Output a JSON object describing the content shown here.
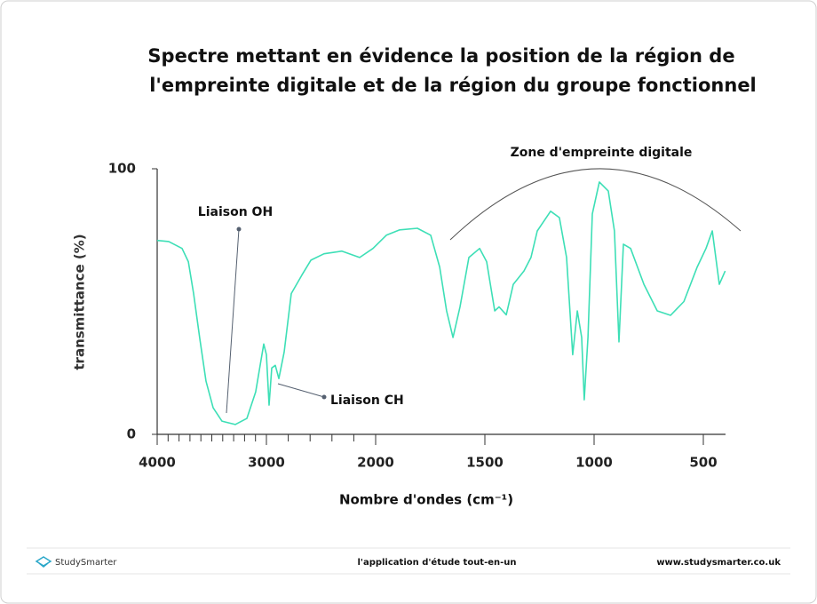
{
  "chart_data": {
    "type": "line",
    "title": [
      "Spectre mettant en évidence la position de la région de",
      "l'empreinte digitale et de la région du groupe fonctionnel"
    ],
    "x_label": "Nombre d'ondes (cm⁻¹)",
    "y_label": "transmittance (%)",
    "annotations": [
      "Liaison OH",
      "Liaison CH",
      "Zone d'empreinte digitale"
    ],
    "x": [
      4000,
      3894,
      3772,
      3715,
      3667,
      3610,
      3553,
      3488,
      3407,
      3285,
      3179,
      3098,
      3024,
      3000,
      2976,
      2951,
      2919,
      2886,
      2837,
      2772,
      2675,
      2593,
      2472,
      2309,
      2146,
      2024,
      1951,
      1890,
      1809,
      1748,
      1707,
      1675,
      1646,
      1614,
      1573,
      1524,
      1492,
      1455,
      1435,
      1402,
      1370,
      1321,
      1289,
      1260,
      1199,
      1159,
      1126,
      1098,
      1077,
      1057,
      1045,
      1028,
      1008,
      976,
      935,
      907,
      886,
      866,
      833,
      772,
      711,
      650,
      589,
      528,
      488,
      459,
      427,
      400
    ],
    "values": [
      73,
      72.6,
      70,
      65,
      53,
      36,
      20,
      10,
      5,
      3.7,
      6,
      16,
      34,
      30,
      11,
      25,
      26,
      21,
      31,
      53,
      60,
      65.6,
      68,
      69,
      66.6,
      70,
      75,
      77,
      77.6,
      75,
      63,
      46.5,
      36.5,
      48,
      66.6,
      70,
      65,
      46.5,
      48,
      45,
      56.5,
      61.5,
      66.6,
      76.6,
      84,
      81.6,
      66.6,
      30,
      46.5,
      36.5,
      13,
      36.5,
      83,
      95,
      91.6,
      76.6,
      34.8,
      71.6,
      70,
      56.5,
      46.5,
      44.8,
      50,
      63,
      70,
      76.6,
      56.5,
      61.5
    ],
    "color": "#3ddfb6",
    "xlim": [
      4000,
      400
    ],
    "ylim": [
      0,
      100
    ],
    "xticks": [
      4000,
      3000,
      2000,
      1500,
      1000,
      500
    ],
    "xminorticks": [
      3900,
      3800,
      3700,
      3600,
      3500,
      3400,
      3300,
      3200,
      3100,
      2800,
      2600,
      2400,
      2200
    ],
    "yticks": [
      0,
      100
    ],
    "footer": {
      "brand": "StudySmarter",
      "tagline": "l'application d'étude tout-en-un",
      "url": "www.studysmarter.co.uk"
    }
  }
}
